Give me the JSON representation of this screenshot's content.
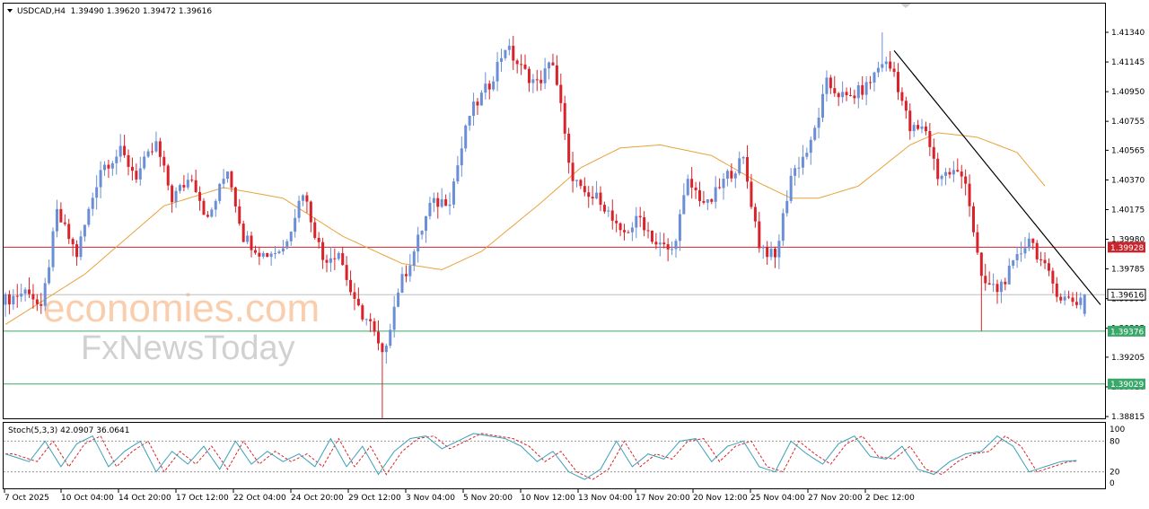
{
  "header": {
    "menu_arrow": "triangle-down-icon",
    "symbol_line": "USDCAD,H4  1.39490 1.39620 1.39472 1.39616"
  },
  "watermark": {
    "line1": "economies.com",
    "line2": "FxNewsToday"
  },
  "colors": {
    "bull": "#6a8fd6",
    "bear": "#d8232a",
    "ma": "#e8a23a",
    "trendline": "#000000",
    "resistance": "#c8262e",
    "support": "#3aa86b",
    "current": "#bdbdbd",
    "stoch_main": "#3aa0b8",
    "stoch_signal": "#d8232a",
    "watermark_orange": "#f6a56b",
    "watermark_gray": "#9a9a9a"
  },
  "chart_data": [
    {
      "type": "candlestick",
      "symbol": "USDCAD",
      "timeframe": "H4",
      "ohlc_readout": {
        "open": 1.3949,
        "high": 1.3962,
        "low": 1.39472,
        "close": 1.39616
      },
      "ylim": [
        1.387,
        1.415
      ],
      "y_ticks": [
        "1.41340",
        "1.41145",
        "1.40950",
        "1.40755",
        "1.40565",
        "1.40370",
        "1.40175",
        "1.39980",
        "1.39785",
        "1.39590",
        "1.39395",
        "1.39205",
        "1.39010",
        "1.38815"
      ],
      "x_ticks": [
        "7 Oct 2025",
        "10 Oct 04:00",
        "14 Oct 20:00",
        "17 Oct 12:00",
        "22 Oct 04:00",
        "24 Oct 20:00",
        "29 Oct 12:00",
        "3 Nov 04:00",
        "5 Nov 20:00",
        "10 Nov 12:00",
        "13 Nov 04:00",
        "17 Nov 20:00",
        "20 Nov 12:00",
        "25 Nov 04:00",
        "27 Nov 20:00",
        "2 Dec 12:00"
      ],
      "close_anchors": [
        [
          0,
          1.3958
        ],
        [
          6,
          1.3965
        ],
        [
          9,
          1.395
        ],
        [
          13,
          1.4015
        ],
        [
          18,
          1.3988
        ],
        [
          24,
          1.4045
        ],
        [
          29,
          1.4055
        ],
        [
          33,
          1.404
        ],
        [
          38,
          1.406
        ],
        [
          42,
          1.4025
        ],
        [
          47,
          1.404
        ],
        [
          51,
          1.401
        ],
        [
          56,
          1.4045
        ],
        [
          60,
          1.4
        ],
        [
          65,
          1.3988
        ],
        [
          70,
          1.3992
        ],
        [
          75,
          1.403
        ],
        [
          80,
          1.3985
        ],
        [
          84,
          1.399
        ],
        [
          88,
          1.3955
        ],
        [
          92,
          1.3942
        ],
        [
          95,
          1.392
        ],
        [
          99,
          1.3965
        ],
        [
          103,
          1.399
        ],
        [
          107,
          1.402
        ],
        [
          112,
          1.4025
        ],
        [
          117,
          1.408
        ],
        [
          122,
          1.41
        ],
        [
          126,
          1.4125
        ],
        [
          130,
          1.411
        ],
        [
          134,
          1.41
        ],
        [
          138,
          1.4115
        ],
        [
          140,
          1.4085
        ],
        [
          142,
          1.4045
        ],
        [
          146,
          1.4025
        ],
        [
          150,
          1.4025
        ],
        [
          155,
          1.4
        ],
        [
          160,
          1.4012
        ],
        [
          164,
          1.3995
        ],
        [
          168,
          1.399
        ],
        [
          172,
          1.4035
        ],
        [
          177,
          1.402
        ],
        [
          182,
          1.404
        ],
        [
          186,
          1.405
        ],
        [
          190,
          1.3995
        ],
        [
          194,
          1.3985
        ],
        [
          198,
          1.404
        ],
        [
          203,
          1.406
        ],
        [
          207,
          1.41
        ],
        [
          212,
          1.409
        ],
        [
          217,
          1.4098
        ],
        [
          221,
          1.4115
        ],
        [
          224,
          1.4108
        ],
        [
          228,
          1.407
        ],
        [
          232,
          1.407
        ],
        [
          235,
          1.404
        ],
        [
          239,
          1.4042
        ],
        [
          242,
          1.4038
        ],
        [
          246,
          1.397
        ],
        [
          250,
          1.3965
        ],
        [
          254,
          1.398
        ],
        [
          258,
          1.4
        ],
        [
          262,
          1.3978
        ],
        [
          266,
          1.396
        ],
        [
          270,
          1.3957
        ],
        [
          272,
          1.39616
        ]
      ],
      "moving_average_anchors": [
        [
          0,
          1.3942
        ],
        [
          20,
          1.3975
        ],
        [
          40,
          1.402
        ],
        [
          55,
          1.4032
        ],
        [
          70,
          1.4025
        ],
        [
          85,
          1.4
        ],
        [
          100,
          1.3982
        ],
        [
          110,
          1.3978
        ],
        [
          120,
          1.399
        ],
        [
          135,
          1.4022
        ],
        [
          145,
          1.4045
        ],
        [
          155,
          1.4058
        ],
        [
          165,
          1.406
        ],
        [
          178,
          1.4053
        ],
        [
          190,
          1.4035
        ],
        [
          198,
          1.4025
        ],
        [
          205,
          1.4025
        ],
        [
          215,
          1.4033
        ],
        [
          228,
          1.406
        ],
        [
          235,
          1.4068
        ],
        [
          245,
          1.4065
        ],
        [
          255,
          1.4055
        ],
        [
          262,
          1.4033
        ]
      ],
      "trendline": {
        "from": [
          224,
          1.4122
        ],
        "to": [
          276,
          1.3955
        ]
      },
      "levels": [
        {
          "name": "resistance",
          "value": 1.39928,
          "label": "1.39928"
        },
        {
          "name": "current",
          "value": 1.39616,
          "label": "1.39616"
        },
        {
          "name": "support-1",
          "value": 1.39376,
          "label": "1.39376"
        },
        {
          "name": "support-2",
          "value": 1.39029,
          "label": "1.39029"
        }
      ]
    },
    {
      "type": "line",
      "indicator_label": "Stoch(5,3,3) 42.0907 36.0641",
      "ylim": [
        0,
        100
      ],
      "y_ticks": [
        "100",
        "80",
        "20",
        "0"
      ],
      "levels": [
        80,
        20
      ],
      "main_anchors": [
        [
          0,
          55
        ],
        [
          6,
          40
        ],
        [
          10,
          80
        ],
        [
          14,
          30
        ],
        [
          18,
          75
        ],
        [
          22,
          90
        ],
        [
          26,
          30
        ],
        [
          30,
          60
        ],
        [
          34,
          80
        ],
        [
          38,
          20
        ],
        [
          42,
          60
        ],
        [
          46,
          35
        ],
        [
          50,
          70
        ],
        [
          54,
          25
        ],
        [
          58,
          80
        ],
        [
          62,
          35
        ],
        [
          66,
          60
        ],
        [
          70,
          40
        ],
        [
          74,
          55
        ],
        [
          78,
          30
        ],
        [
          82,
          85
        ],
        [
          86,
          30
        ],
        [
          90,
          70
        ],
        [
          94,
          15
        ],
        [
          98,
          60
        ],
        [
          102,
          85
        ],
        [
          106,
          90
        ],
        [
          110,
          65
        ],
        [
          114,
          80
        ],
        [
          118,
          95
        ],
        [
          122,
          90
        ],
        [
          126,
          85
        ],
        [
          130,
          70
        ],
        [
          134,
          40
        ],
        [
          138,
          60
        ],
        [
          142,
          20
        ],
        [
          146,
          5
        ],
        [
          150,
          25
        ],
        [
          154,
          80
        ],
        [
          158,
          30
        ],
        [
          162,
          55
        ],
        [
          166,
          45
        ],
        [
          170,
          80
        ],
        [
          174,
          85
        ],
        [
          178,
          40
        ],
        [
          182,
          70
        ],
        [
          186,
          80
        ],
        [
          190,
          30
        ],
        [
          194,
          20
        ],
        [
          198,
          80
        ],
        [
          202,
          55
        ],
        [
          206,
          35
        ],
        [
          210,
          75
        ],
        [
          214,
          90
        ],
        [
          218,
          50
        ],
        [
          222,
          45
        ],
        [
          226,
          70
        ],
        [
          230,
          25
        ],
        [
          234,
          15
        ],
        [
          238,
          40
        ],
        [
          242,
          55
        ],
        [
          246,
          60
        ],
        [
          250,
          90
        ],
        [
          254,
          70
        ],
        [
          258,
          20
        ],
        [
          262,
          30
        ],
        [
          266,
          40
        ],
        [
          270,
          42.09
        ]
      ],
      "signal_lag": 2
    }
  ]
}
